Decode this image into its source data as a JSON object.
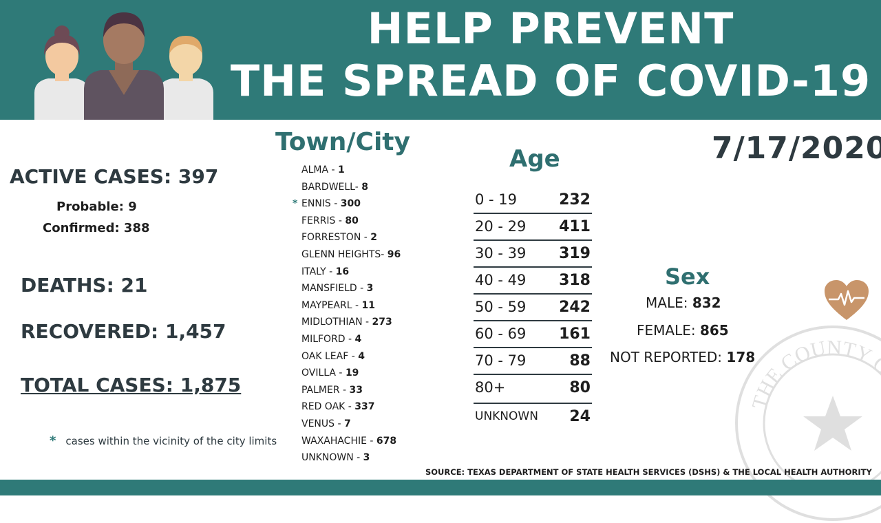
{
  "headline": {
    "line1": "HELP PREVENT",
    "line2": "THE SPREAD OF COVID-19"
  },
  "date": "7/17/2020",
  "summary": {
    "active": "ACTIVE CASES: 397",
    "probable": "Probable: 9",
    "confirmed": "Confirmed: 388",
    "deaths": "DEATHS: 21",
    "recovered": "RECOVERED: 1,457",
    "total": "TOTAL CASES: 1,875"
  },
  "footnote": {
    "symbol": "*",
    "text": "cases within the vicinity of the city limits"
  },
  "town_section": {
    "title": "Town/City",
    "items": [
      {
        "name": "ALMA - ",
        "count": "1",
        "mark": ""
      },
      {
        "name": "BARDWELL- ",
        "count": "8",
        "mark": ""
      },
      {
        "name": "ENNIS - ",
        "count": "300",
        "mark": "*"
      },
      {
        "name": "FERRIS - ",
        "count": "80",
        "mark": ""
      },
      {
        "name": "FORRESTON - ",
        "count": "2",
        "mark": ""
      },
      {
        "name": "GLENN HEIGHTS- ",
        "count": "96",
        "mark": ""
      },
      {
        "name": "ITALY - ",
        "count": "16",
        "mark": ""
      },
      {
        "name": "MANSFIELD - ",
        "count": "3",
        "mark": ""
      },
      {
        "name": "MAYPEARL - ",
        "count": "11",
        "mark": ""
      },
      {
        "name": "MIDLOTHIAN - ",
        "count": "273",
        "mark": ""
      },
      {
        "name": "MILFORD - ",
        "count": "4",
        "mark": ""
      },
      {
        "name": "OAK LEAF - ",
        "count": "4",
        "mark": ""
      },
      {
        "name": "OVILLA - ",
        "count": "19",
        "mark": ""
      },
      {
        "name": "PALMER - ",
        "count": "33",
        "mark": ""
      },
      {
        "name": "RED OAK - ",
        "count": "337",
        "mark": ""
      },
      {
        "name": "VENUS - ",
        "count": "7",
        "mark": ""
      },
      {
        "name": "WAXAHACHIE - ",
        "count": "678",
        "mark": ""
      },
      {
        "name": "UNKNOWN - ",
        "count": "3",
        "mark": ""
      }
    ]
  },
  "age_section": {
    "title": "Age",
    "rows": [
      {
        "range": "0 - 19",
        "count": "232"
      },
      {
        "range": "20 - 29",
        "count": "411"
      },
      {
        "range": "30 - 39",
        "count": "319"
      },
      {
        "range": "40 - 49",
        "count": "318"
      },
      {
        "range": "50 - 59",
        "count": "242"
      },
      {
        "range": "60 - 69",
        "count": "161"
      },
      {
        "range": "70 - 79",
        "count": "88"
      },
      {
        "range": "80+",
        "count": "80"
      },
      {
        "range": "UNKNOWN",
        "count": "24"
      }
    ]
  },
  "sex_section": {
    "title": "Sex",
    "male_label": "MALE: ",
    "male_count": "832",
    "female_label": "FEMALE: ",
    "female_count": "865",
    "nr_label": "NOT REPORTED: ",
    "nr_count": "178"
  },
  "seal_text": "THE COUNTY OF",
  "source": "SOURCE: TEXAS DEPARTMENT OF STATE HEALTH SERVICES (DSHS) & THE LOCAL HEALTH AUTHORITY",
  "icons": {
    "people": "people-illustration-icon",
    "heart": "heartbeat-icon",
    "seal": "county-seal-icon"
  },
  "colors": {
    "banner": "#2f7a78",
    "accent_text": "#2f6f70",
    "dark_text": "#2e3a40",
    "heart": "#c8956a"
  }
}
